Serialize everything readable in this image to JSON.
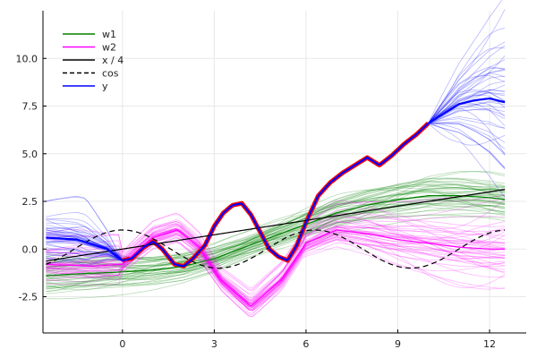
{
  "chart_data": {
    "type": "line",
    "title": "",
    "xlabel": "",
    "ylabel": "",
    "xlim": [
      -2.6,
      13.2
    ],
    "ylim": [
      -4.4,
      12.5
    ],
    "grid": true,
    "legend_position": "top-left",
    "xticks": [
      0,
      3,
      6,
      9,
      12
    ],
    "yticks": [
      -2.5,
      0.0,
      2.5,
      5.0,
      7.5,
      10.0
    ],
    "xtick_labels": [
      "0",
      "3",
      "6",
      "9",
      "12"
    ],
    "ytick_labels": [
      "-2.5",
      "0.0",
      "2.5",
      "5.0",
      "7.5",
      "10.0"
    ],
    "legend": [
      {
        "label": "w1",
        "color": "#008000",
        "style": "solid"
      },
      {
        "label": "w2",
        "color": "#ff00ff",
        "style": "solid"
      },
      {
        "label": "x / 4",
        "color": "#000000",
        "style": "solid"
      },
      {
        "label": "cos",
        "color": "#000000",
        "style": "dashed"
      },
      {
        "label": "y",
        "color": "#0000ff",
        "style": "solid"
      }
    ],
    "series": [
      {
        "name": "w1",
        "color": "#008000",
        "style": "solid",
        "x": [
          -2.5,
          -1.5,
          0,
          1,
          2,
          3,
          4,
          5,
          6,
          7,
          8,
          9,
          10,
          11,
          12,
          12.5
        ],
        "y": [
          -1.4,
          -1.3,
          -1.2,
          -1.1,
          -0.9,
          -0.5,
          0.1,
          0.7,
          1.3,
          1.9,
          2.3,
          2.6,
          2.8,
          2.8,
          2.7,
          2.6
        ]
      },
      {
        "name": "w2",
        "color": "#ff00ff",
        "style": "solid",
        "x": [
          -2.5,
          -1.0,
          0,
          1,
          1.8,
          2.5,
          3.2,
          4.2,
          5.2,
          6,
          7,
          8,
          9,
          10,
          11,
          12,
          12.5
        ],
        "y": [
          -0.8,
          -0.9,
          -0.8,
          0.6,
          1.0,
          0.1,
          -1.6,
          -3.0,
          -1.6,
          0.3,
          1.0,
          0.8,
          0.5,
          0.3,
          0.1,
          0.0,
          0.0
        ]
      },
      {
        "name": "x / 4",
        "color": "#000000",
        "style": "solid",
        "x": [
          -2.5,
          12.5
        ],
        "y": [
          -0.625,
          3.125
        ]
      },
      {
        "name": "cos",
        "color": "#000000",
        "style": "dashed",
        "function": "cos",
        "x_range": [
          -2.5,
          12.5
        ]
      },
      {
        "name": "y",
        "color": "#0000ff",
        "style": "solid",
        "x": [
          -2.5,
          -1.5,
          -0.5,
          0,
          0.3,
          0.7,
          1.0,
          1.3,
          1.7,
          2.0,
          2.3,
          2.7,
          3.0,
          3.3,
          3.6,
          3.9,
          4.2,
          4.5,
          4.8,
          5.1,
          5.4,
          5.7,
          6.0,
          6.4,
          6.8,
          7.2,
          7.6,
          8.0,
          8.4,
          8.8,
          9.2,
          9.6,
          10.0,
          10.5,
          11.0,
          11.5,
          12.0,
          12.5
        ],
        "y": [
          0.6,
          0.5,
          0.0,
          -0.6,
          -0.5,
          0.1,
          0.4,
          0.0,
          -0.8,
          -0.9,
          -0.5,
          0.2,
          1.2,
          1.9,
          2.3,
          2.4,
          1.8,
          0.9,
          0.0,
          -0.4,
          -0.6,
          0.2,
          1.4,
          2.8,
          3.5,
          4.0,
          4.4,
          4.8,
          4.4,
          4.9,
          5.5,
          6.0,
          6.6,
          7.1,
          7.6,
          7.8,
          7.9,
          7.7
        ]
      }
    ],
    "observed": {
      "color": "#ff0000",
      "x_range": [
        0,
        10
      ],
      "description_series": "y"
    }
  }
}
